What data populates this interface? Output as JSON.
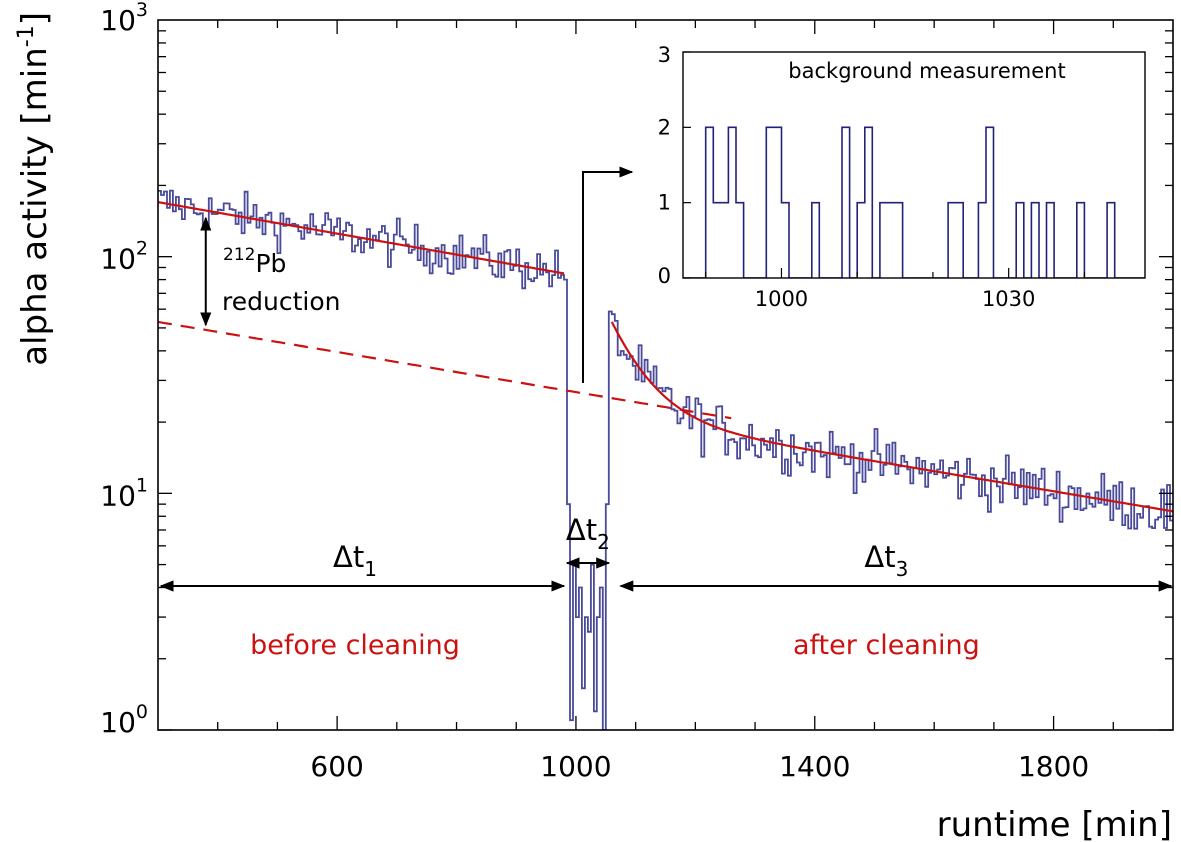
{
  "chart_data": [
    {
      "type": "line",
      "subtype": "step-histogram",
      "title": "",
      "xlabel": "runtime [min]",
      "ylabel_base": "alpha activity [min",
      "ylabel_sup": "-1",
      "ylabel_end": "]",
      "xlim": [
        300,
        2000
      ],
      "ylim": [
        1,
        1000
      ],
      "yscale": "log",
      "x_ticks": [
        600,
        1000,
        1400,
        1800
      ],
      "x_tick_labels": [
        "600",
        "1000",
        "1400",
        "1800"
      ],
      "y_ticks": [
        1,
        10,
        100,
        1000
      ],
      "y_tick_labels": [
        {
          "base": "10",
          "exp": "0"
        },
        {
          "base": "10",
          "exp": "1"
        },
        {
          "base": "10",
          "exp": "2"
        },
        {
          "base": "10",
          "exp": "3"
        }
      ],
      "bin_width": 5,
      "histogram_color": "#4a4a9a",
      "fit_color": "#cc1111",
      "segments": [
        {
          "name": "before cleaning",
          "x_start": 300,
          "x_end": 980,
          "a": 170,
          "tau": 980,
          "noise": 0.11
        },
        {
          "name": "gap",
          "x_start": 980,
          "x_end": 1055,
          "values": [
            80,
            9,
            1.1,
            5,
            3,
            4,
            1.5,
            3,
            2.6,
            5,
            1.2,
            3,
            4,
            1,
            9
          ]
        },
        {
          "name": "after cleaning",
          "x_start": 1055,
          "x_end": 2000,
          "a": 21,
          "tau": 1025,
          "b": 32,
          "tau2": 55,
          "noise": 0.13
        }
      ],
      "fits": [
        {
          "kind": "exp",
          "style": "solid",
          "x_start": 300,
          "x_end": 980,
          "a": 170,
          "tau": 980
        },
        {
          "kind": "exp",
          "style": "dashed",
          "x_start": 300,
          "x_end": 1260,
          "a": 53,
          "tau": 1025
        },
        {
          "kind": "exp2",
          "style": "solid",
          "x_start": 1060,
          "x_end": 2000,
          "a": 21,
          "tau": 1025,
          "b": 32,
          "tau2": 55
        }
      ],
      "annotations": {
        "dt1": {
          "base": "Δt",
          "sub": "1"
        },
        "dt2": {
          "base": "Δt",
          "sub": "2"
        },
        "dt3": {
          "base": "Δt",
          "sub": "3"
        },
        "pb_sup": "212",
        "pb_text": "Pb",
        "reduction": "reduction",
        "before": "before cleaning",
        "after": "after cleaning"
      }
    },
    {
      "type": "line",
      "subtype": "step-histogram",
      "title": "background measurement",
      "xlim": [
        987,
        1048
      ],
      "ylim": [
        0,
        3
      ],
      "x_ticks": [
        1000,
        1030
      ],
      "x_tick_labels": [
        "1000",
        "1030"
      ],
      "y_ticks": [
        0,
        1,
        2,
        3
      ],
      "y_tick_labels": [
        "0",
        "1",
        "2",
        "3"
      ],
      "bin_width": 1,
      "x_start": 987,
      "counts": [
        0,
        0,
        0,
        2,
        1,
        1,
        2,
        1,
        0,
        0,
        0,
        2,
        2,
        1,
        0,
        0,
        0,
        1,
        0,
        0,
        0,
        2,
        0,
        1,
        2,
        0,
        1,
        1,
        1,
        0,
        0,
        0,
        0,
        0,
        0,
        1,
        1,
        0,
        0,
        1,
        2,
        0,
        0,
        0,
        1,
        0,
        1,
        0,
        1,
        0,
        0,
        0,
        1,
        0,
        0,
        0,
        1,
        0,
        0,
        0,
        0
      ]
    }
  ]
}
